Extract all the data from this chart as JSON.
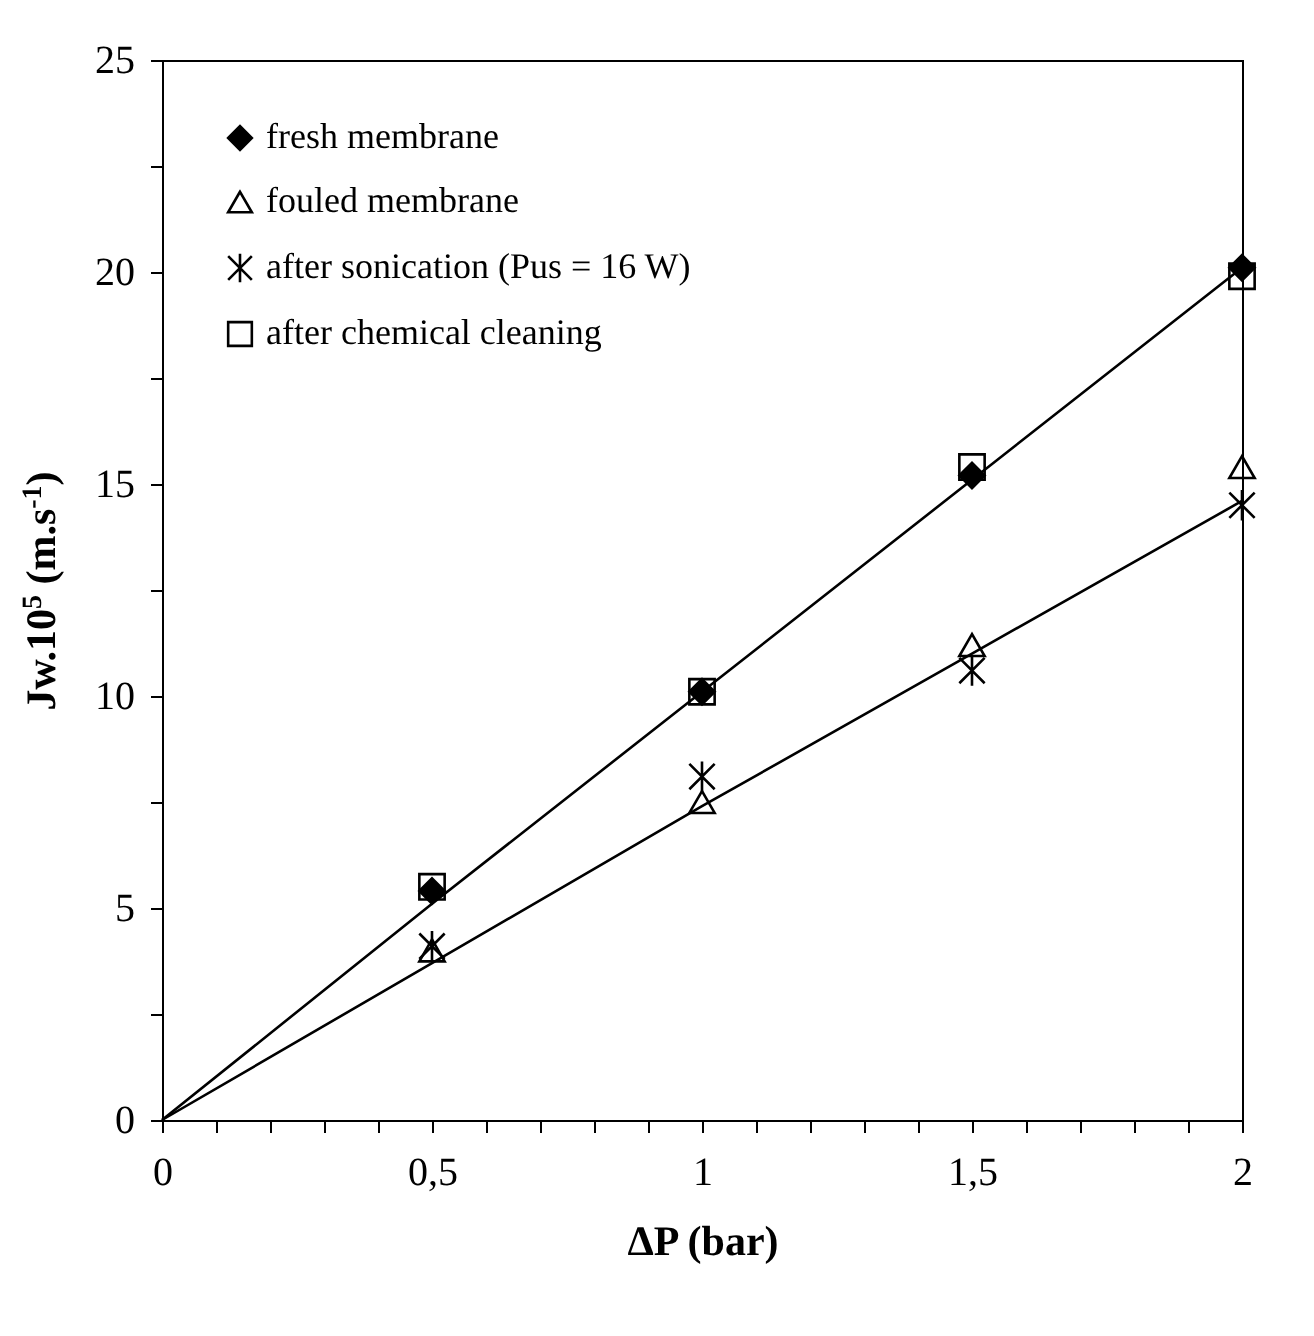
{
  "chart_data": {
    "type": "scatter",
    "xlabel": "ΔP (bar)",
    "ylabel": "Jw.10$^{5}$ (m.s$^{-1}$)",
    "x": [
      0.5,
      1,
      1.5,
      2
    ],
    "series": [
      {
        "name": "fresh membrane",
        "color": "#000000",
        "marker": "diamond",
        "values": [
          5.4,
          10.1,
          15.2,
          20.1
        ]
      },
      {
        "name": "fouled membrane",
        "color": "#000000",
        "marker": "triangle",
        "values": [
          4.0,
          7.5,
          11.2,
          15.4
        ]
      },
      {
        "name": "after sonication (Pus = 16 W)",
        "color": "#000000",
        "marker": "cross",
        "values": [
          4.1,
          8.1,
          10.6,
          14.5
        ]
      },
      {
        "name": "after chemical cleaning",
        "color": "#000000",
        "marker": "square",
        "values": [
          5.5,
          10.1,
          15.4,
          19.9
        ]
      },
      {
        "type": "line",
        "color": "#000000",
        "x": [
          0,
          0.5,
          1,
          1.5,
          2
        ],
        "values": [
          0,
          5.1,
          10.1,
          15.1,
          20.1
        ]
      },
      {
        "type": "line",
        "color": "#000000",
        "x": [
          0,
          0.5,
          1,
          1.5,
          2
        ],
        "values": [
          0,
          3.7,
          7.4,
          11.0,
          14.6
        ]
      }
    ],
    "xlim": [
      0,
      2
    ],
    "ylim": [
      0,
      25
    ],
    "xticks": [
      0,
      {
        "value": 0.1,
        "label": null
      },
      {
        "value": 0.2,
        "label": null
      },
      {
        "value": 0.3,
        "label": null
      },
      {
        "value": 0.4,
        "label": null
      },
      {
        "value": 0.5,
        "label": "0,5"
      },
      {
        "value": 0.6,
        "label": null
      },
      {
        "value": 0.7,
        "label": null
      },
      {
        "value": 0.8,
        "label": null
      },
      {
        "value": 0.9,
        "label": null
      },
      1,
      {
        "value": 1.1,
        "label": null
      },
      {
        "value": 1.2,
        "label": null
      },
      {
        "value": 1.3,
        "label": null
      },
      {
        "value": 1.4,
        "label": null
      },
      {
        "value": 1.5,
        "label": "1,5"
      },
      {
        "value": 1.6,
        "label": null
      },
      {
        "value": 1.7,
        "label": null
      },
      {
        "value": 1.8,
        "label": null
      },
      {
        "value": 1.9,
        "label": null
      },
      2
    ],
    "yticks": [
      0,
      {
        "value": 2.5,
        "label": null
      },
      5,
      {
        "value": 7.5,
        "label": null
      },
      10,
      {
        "value": 12.5,
        "label": null
      },
      15,
      {
        "value": 17.5,
        "label": null
      },
      20,
      {
        "value": 22.5,
        "label": null
      },
      25
    ],
    "grid": false,
    "legend": "top left"
  }
}
